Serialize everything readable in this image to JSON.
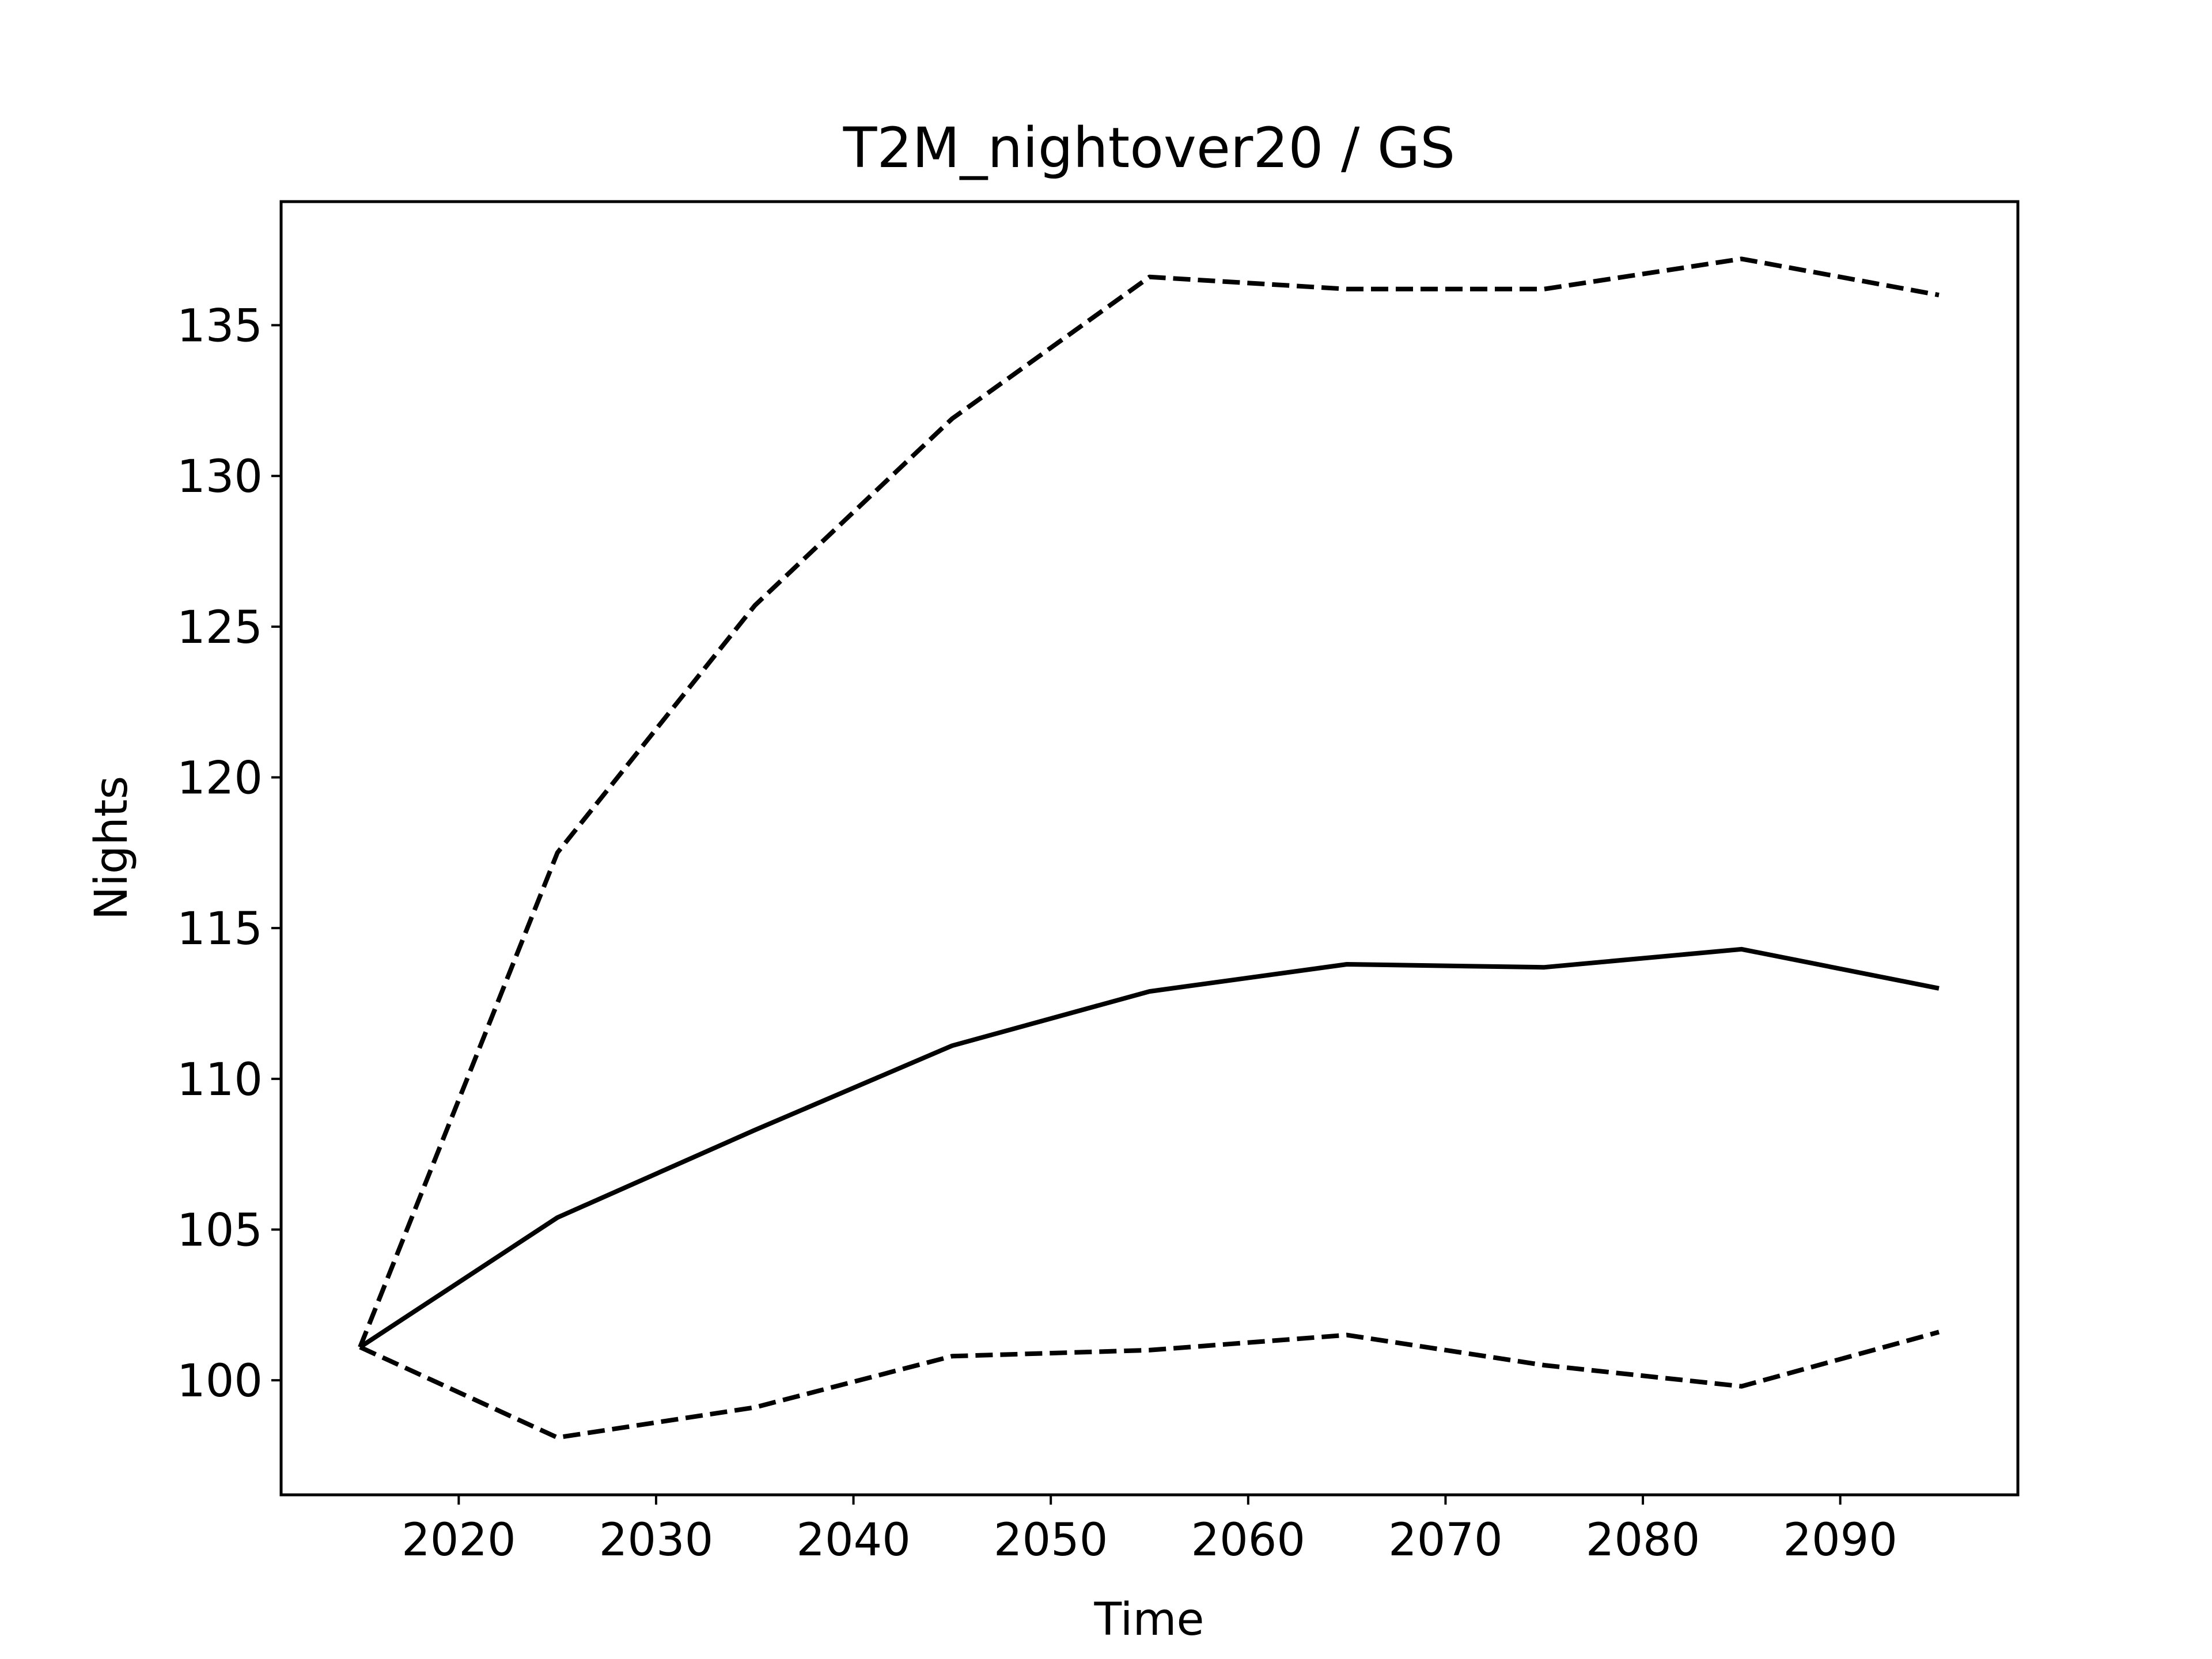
{
  "chart_data": {
    "type": "line",
    "title": "T2M_nightover20 / GS",
    "xlabel": "Time",
    "ylabel": "Nights",
    "xlim": [
      2011,
      2099
    ],
    "ylim": [
      96.2,
      139.1
    ],
    "xticks": [
      2020,
      2030,
      2040,
      2050,
      2060,
      2070,
      2080,
      2090
    ],
    "yticks": [
      100,
      105,
      110,
      115,
      120,
      125,
      130,
      135
    ],
    "grid": false,
    "legend": "none",
    "x": [
      2015,
      2025,
      2035,
      2045,
      2055,
      2065,
      2075,
      2085,
      2095
    ],
    "series": [
      {
        "style": "solid",
        "color": "#000000",
        "values": [
          101.1,
          105.4,
          108.3,
          111.1,
          112.9,
          113.8,
          113.7,
          114.3,
          113.0
        ]
      },
      {
        "style": "dashed",
        "color": "#000000",
        "values": [
          101.1,
          117.5,
          125.7,
          131.9,
          136.6,
          136.2,
          136.2,
          137.2,
          136.0
        ]
      },
      {
        "style": "dashed",
        "color": "#000000",
        "values": [
          101.1,
          98.1,
          99.1,
          100.8,
          101.0,
          101.5,
          100.5,
          99.8,
          101.6
        ]
      }
    ]
  }
}
